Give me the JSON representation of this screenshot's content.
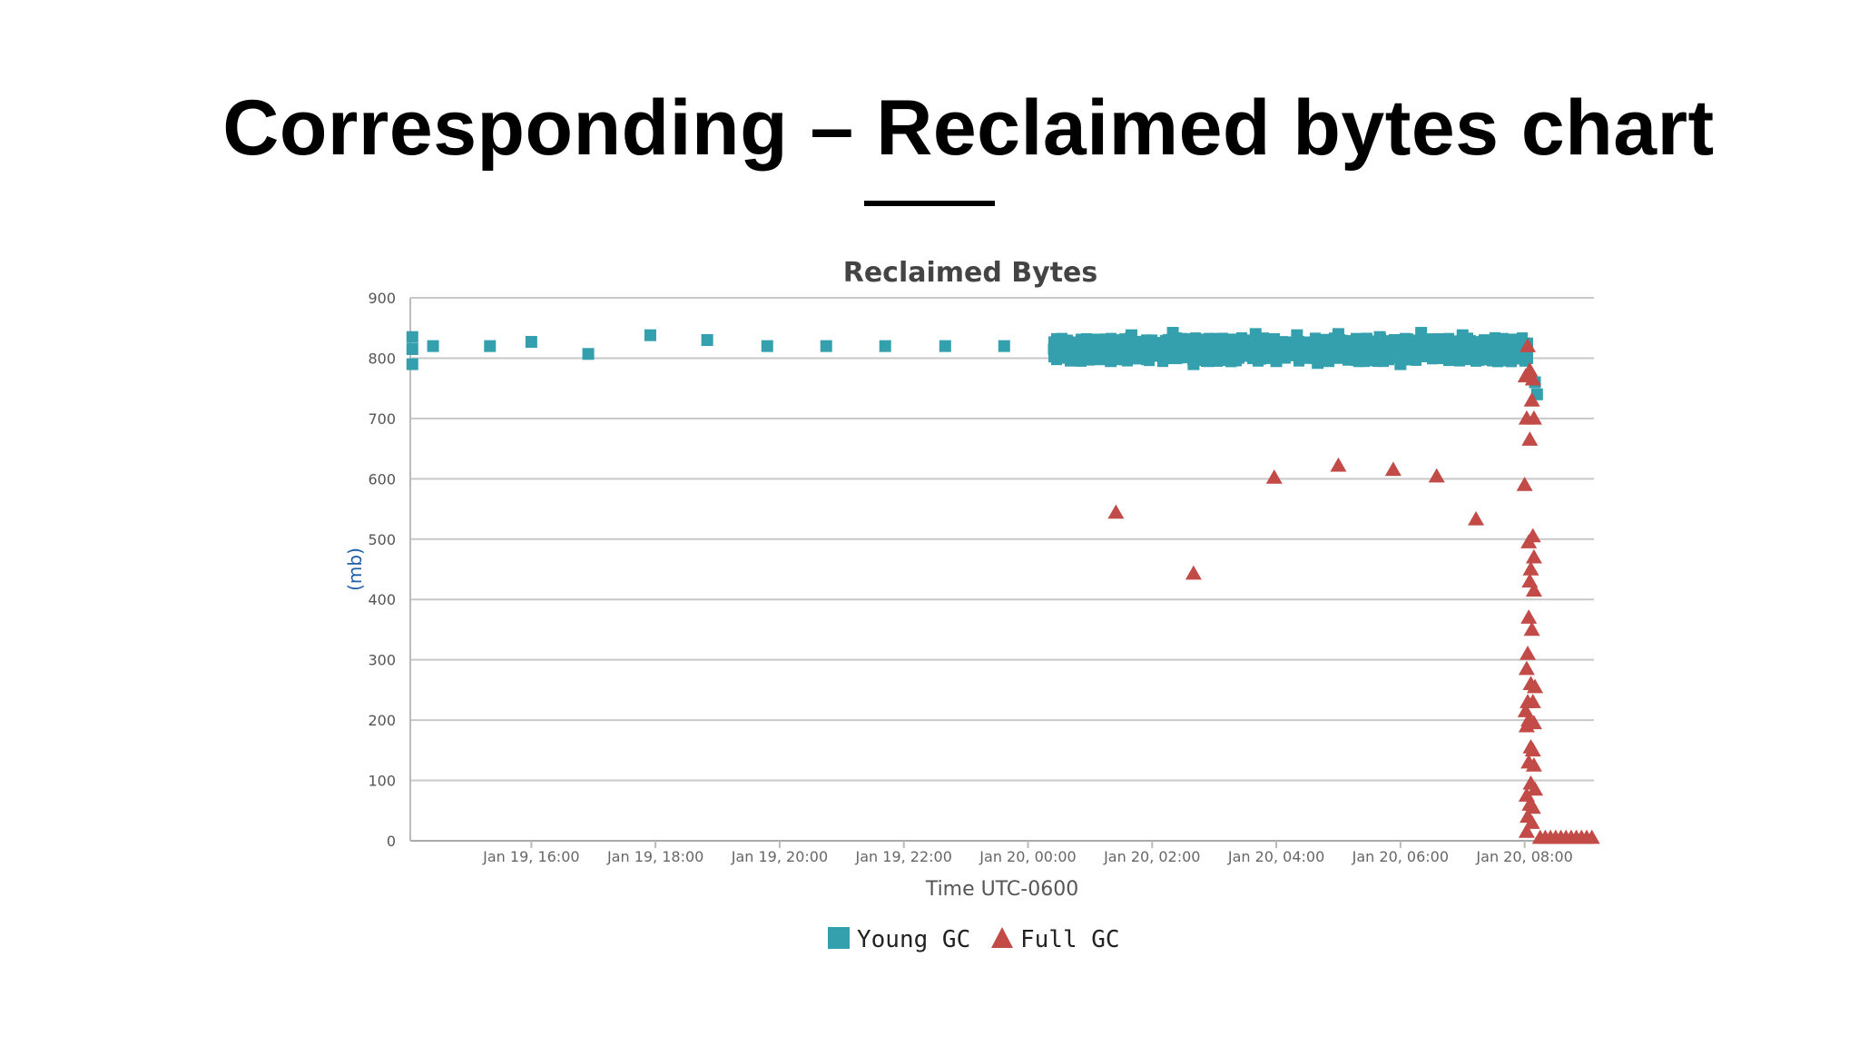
{
  "slide": {
    "title": "Corresponding – Reclaimed bytes chart"
  },
  "colors": {
    "young": "#35a0ad",
    "full": "#c24a47",
    "grid": "#c8c8c8",
    "axis": "#bbbbbb"
  },
  "chart_data": {
    "type": "scatter",
    "title": "Reclaimed Bytes",
    "xlabel": "Time UTC-0600",
    "ylabel": "(mb)",
    "x_ticks": [
      "Jan 19, 16:00",
      "Jan 19, 18:00",
      "Jan 19, 20:00",
      "Jan 19, 22:00",
      "Jan 20, 00:00",
      "Jan 20, 02:00",
      "Jan 20, 04:00",
      "Jan 20, 06:00",
      "Jan 20, 08:00"
    ],
    "x_range": [
      "Jan 19, 14:03",
      "Jan 20, 09:07"
    ],
    "y_ticks": [
      0,
      100,
      200,
      300,
      400,
      500,
      600,
      700,
      800,
      900
    ],
    "ylim": [
      0,
      900
    ],
    "grid": true,
    "legend_position": "bottom-center",
    "series": [
      {
        "name": "Young GC",
        "marker": "square",
        "points": [
          [
            "Jan 19, 14:05",
            835
          ],
          [
            "Jan 19, 14:05",
            815
          ],
          [
            "Jan 19, 14:05",
            790
          ],
          [
            "Jan 19, 14:25",
            820
          ],
          [
            "Jan 19, 15:20",
            820
          ],
          [
            "Jan 19, 16:00",
            827
          ],
          [
            "Jan 19, 16:55",
            807
          ],
          [
            "Jan 19, 17:55",
            838
          ],
          [
            "Jan 19, 18:50",
            830
          ],
          [
            "Jan 19, 19:48",
            820
          ],
          [
            "Jan 19, 20:45",
            820
          ],
          [
            "Jan 19, 21:42",
            820
          ],
          [
            "Jan 19, 22:40",
            820
          ],
          [
            "Jan 19, 23:37",
            820
          ],
          [
            "Jan 20, 00:25",
            815
          ],
          [
            "Jan 20, 00:40",
            808
          ],
          [
            "Jan 20, 01:00",
            830
          ],
          [
            "Jan 20, 01:20",
            795
          ],
          [
            "Jan 20, 01:40",
            838
          ],
          [
            "Jan 20, 02:00",
            805
          ],
          [
            "Jan 20, 02:20",
            842
          ],
          [
            "Jan 20, 02:40",
            790
          ],
          [
            "Jan 20, 03:00",
            832
          ],
          [
            "Jan 20, 03:20",
            800
          ],
          [
            "Jan 20, 03:40",
            840
          ],
          [
            "Jan 20, 04:00",
            795
          ],
          [
            "Jan 20, 04:20",
            838
          ],
          [
            "Jan 20, 04:40",
            792
          ],
          [
            "Jan 20, 05:00",
            840
          ],
          [
            "Jan 20, 05:20",
            795
          ],
          [
            "Jan 20, 05:40",
            835
          ],
          [
            "Jan 20, 06:00",
            790
          ],
          [
            "Jan 20, 06:20",
            842
          ],
          [
            "Jan 20, 06:40",
            800
          ],
          [
            "Jan 20, 07:00",
            838
          ],
          [
            "Jan 20, 07:20",
            805
          ],
          [
            "Jan 20, 07:40",
            830
          ],
          [
            "Jan 20, 08:00",
            810
          ],
          [
            "Jan 20, 08:10",
            760
          ],
          [
            "Jan 20, 08:12",
            740
          ]
        ],
        "dense_band": {
          "from": "Jan 20, 00:25",
          "to": "Jan 20, 08:05",
          "min": 785,
          "max": 843
        }
      },
      {
        "name": "Full GC",
        "marker": "triangle",
        "points": [
          [
            "Jan 20, 01:25",
            544
          ],
          [
            "Jan 20, 02:40",
            443
          ],
          [
            "Jan 20, 03:58",
            602
          ],
          [
            "Jan 20, 05:00",
            622
          ],
          [
            "Jan 20, 05:53",
            615
          ],
          [
            "Jan 20, 06:35",
            604
          ],
          [
            "Jan 20, 07:13",
            533
          ],
          [
            "Jan 20, 08:00",
            590
          ],
          [
            "Jan 20, 08:03",
            820
          ],
          [
            "Jan 20, 08:01",
            770
          ],
          [
            "Jan 20, 08:05",
            780
          ],
          [
            "Jan 20, 08:08",
            765
          ],
          [
            "Jan 20, 08:07",
            730
          ],
          [
            "Jan 20, 08:02",
            700
          ],
          [
            "Jan 20, 08:09",
            700
          ],
          [
            "Jan 20, 08:05",
            665
          ],
          [
            "Jan 20, 08:08",
            505
          ],
          [
            "Jan 20, 08:04",
            495
          ],
          [
            "Jan 20, 08:09",
            470
          ],
          [
            "Jan 20, 08:06",
            450
          ],
          [
            "Jan 20, 08:05",
            430
          ],
          [
            "Jan 20, 08:09",
            415
          ],
          [
            "Jan 20, 08:04",
            370
          ],
          [
            "Jan 20, 08:07",
            350
          ],
          [
            "Jan 20, 08:03",
            310
          ],
          [
            "Jan 20, 08:02",
            285
          ],
          [
            "Jan 20, 08:06",
            260
          ],
          [
            "Jan 20, 08:10",
            255
          ],
          [
            "Jan 20, 08:03",
            230
          ],
          [
            "Jan 20, 08:08",
            230
          ],
          [
            "Jan 20, 08:01",
            215
          ],
          [
            "Jan 20, 08:04",
            200
          ],
          [
            "Jan 20, 08:09",
            195
          ],
          [
            "Jan 20, 08:02",
            190
          ],
          [
            "Jan 20, 08:06",
            155
          ],
          [
            "Jan 20, 08:08",
            150
          ],
          [
            "Jan 20, 08:04",
            130
          ],
          [
            "Jan 20, 08:09",
            125
          ],
          [
            "Jan 20, 08:06",
            95
          ],
          [
            "Jan 20, 08:10",
            85
          ],
          [
            "Jan 20, 08:02",
            75
          ],
          [
            "Jan 20, 08:05",
            60
          ],
          [
            "Jan 20, 08:08",
            55
          ],
          [
            "Jan 20, 08:03",
            40
          ],
          [
            "Jan 20, 08:07",
            30
          ],
          [
            "Jan 20, 08:02",
            15
          ],
          [
            "Jan 20, 08:15",
            5
          ],
          [
            "Jan 20, 08:20",
            5
          ],
          [
            "Jan 20, 08:25",
            5
          ],
          [
            "Jan 20, 08:30",
            5
          ],
          [
            "Jan 20, 08:35",
            5
          ],
          [
            "Jan 20, 08:40",
            5
          ],
          [
            "Jan 20, 08:45",
            5
          ],
          [
            "Jan 20, 08:50",
            5
          ],
          [
            "Jan 20, 08:55",
            5
          ],
          [
            "Jan 20, 09:00",
            5
          ],
          [
            "Jan 20, 09:05",
            5
          ]
        ]
      }
    ]
  }
}
